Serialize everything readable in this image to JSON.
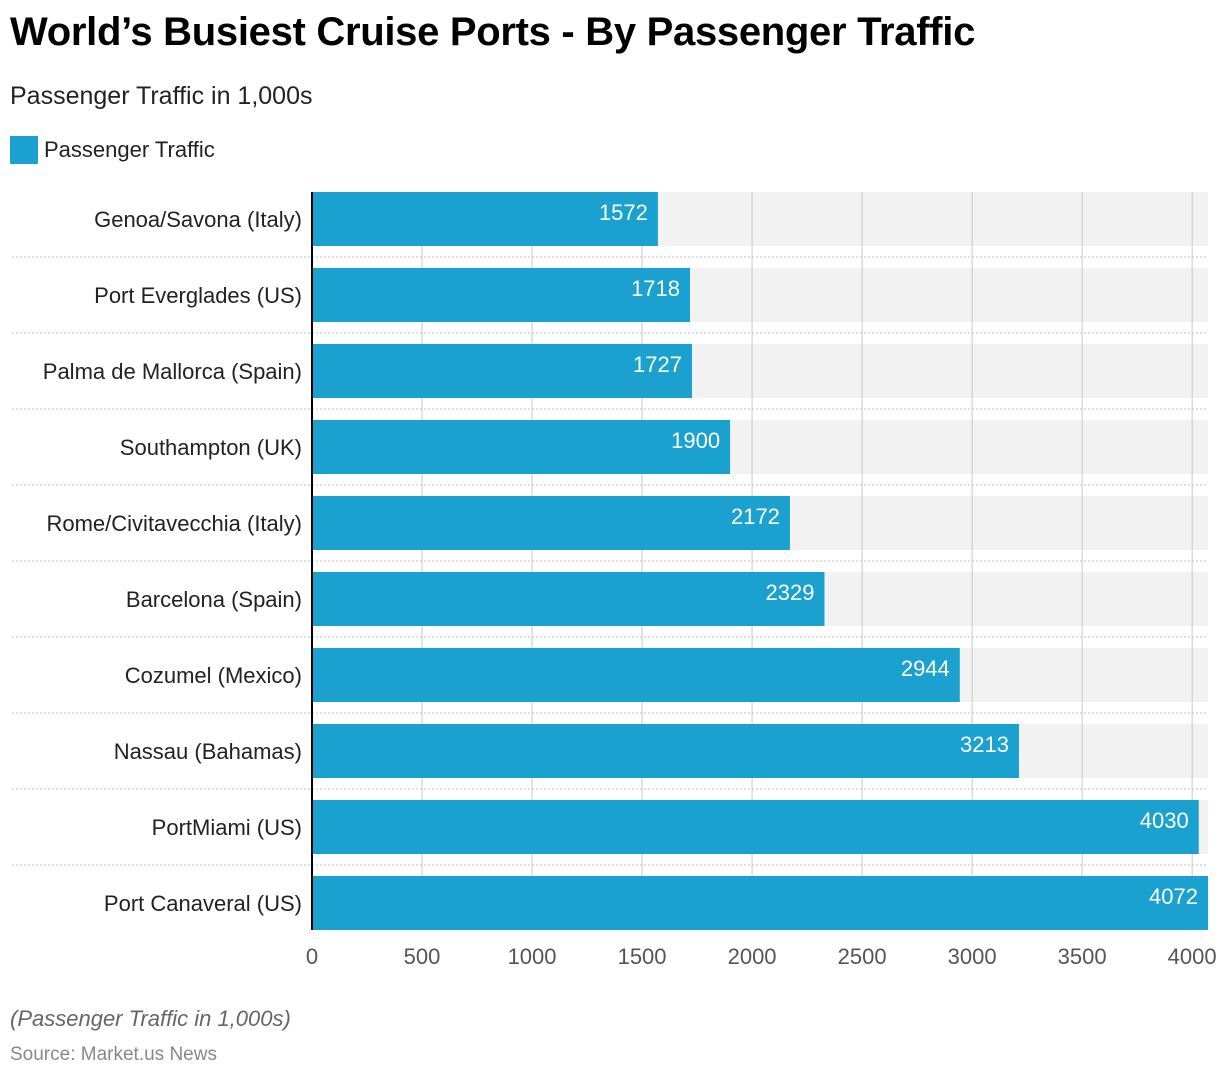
{
  "title": "World’s Busiest Cruise Ports - By Passenger Traffic",
  "subtitle": "Passenger Traffic in 1,000s",
  "legend": {
    "label": "Passenger Traffic"
  },
  "footnote": "(Passenger Traffic in 1,000s)",
  "source": "Source: Market.us News",
  "colors": {
    "bar": "#1aa1cf",
    "track": "#f2f2f2",
    "grid": "#c8c8c8",
    "separator": "#bfbfbf"
  },
  "chart_data": {
    "type": "bar",
    "orientation": "horizontal",
    "categories": [
      "Genoa/Savona (Italy)",
      "Port Everglades (US)",
      "Palma de Mallorca (Spain)",
      "Southampton (UK)",
      "Rome/Civitavecchia (Italy)",
      "Barcelona (Spain)",
      "Cozumel (Mexico)",
      "Nassau (Bahamas)",
      "PortMiami (US)",
      "Port Canaveral (US)"
    ],
    "series": [
      {
        "name": "Passenger Traffic",
        "values": [
          1572,
          1718,
          1727,
          1900,
          2172,
          2329,
          2944,
          3213,
          4030,
          4072
        ]
      }
    ],
    "xticks": [
      0,
      500,
      1000,
      1500,
      2000,
      2500,
      3000,
      3500,
      4000
    ],
    "xlim": [
      0,
      4072
    ],
    "grid": true,
    "legend_position": "top-left"
  }
}
